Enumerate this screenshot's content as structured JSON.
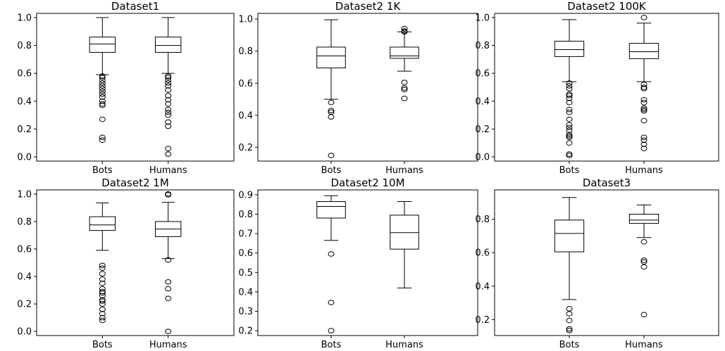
{
  "chart_data": [
    {
      "type": "boxplot",
      "title": "Dataset1",
      "categories": [
        "Bots",
        "Humans"
      ],
      "ylim": [
        -0.03,
        1.03
      ],
      "yticks": [
        0.0,
        0.2,
        0.4,
        0.6,
        0.8,
        1.0
      ],
      "ytick_labels": [
        "0.0",
        "0.2",
        "0.4",
        "0.6",
        "0.8",
        "1.0"
      ],
      "boxes": [
        {
          "name": "Bots",
          "whisker_low": 0.59,
          "q1": 0.75,
          "median": 0.81,
          "q3": 0.86,
          "whisker_high": 1.0,
          "outliers": [
            0.58,
            0.57,
            0.55,
            0.53,
            0.51,
            0.49,
            0.47,
            0.45,
            0.43,
            0.4,
            0.38,
            0.37,
            0.27,
            0.14,
            0.12
          ]
        },
        {
          "name": "Humans",
          "whisker_low": 0.6,
          "q1": 0.75,
          "median": 0.8,
          "q3": 0.86,
          "whisker_high": 1.0,
          "outliers": [
            0.58,
            0.57,
            0.55,
            0.53,
            0.51,
            0.48,
            0.44,
            0.41,
            0.38,
            0.34,
            0.32,
            0.3,
            0.25,
            0.22,
            0.06,
            0.02
          ]
        }
      ]
    },
    {
      "type": "boxplot",
      "title": "Dataset2 1K",
      "categories": [
        "Bots",
        "Humans"
      ],
      "ylim": [
        0.115,
        1.035
      ],
      "yticks": [
        0.2,
        0.4,
        0.6,
        0.8,
        1.0
      ],
      "ytick_labels": [
        "0.2",
        "0.4",
        "0.6",
        "0.8",
        "1.0"
      ],
      "boxes": [
        {
          "name": "Bots",
          "whisker_low": 0.5,
          "q1": 0.695,
          "median": 0.77,
          "q3": 0.825,
          "whisker_high": 0.995,
          "outliers": [
            0.48,
            0.43,
            0.42,
            0.39,
            0.15
          ]
        },
        {
          "name": "Humans",
          "whisker_low": 0.675,
          "q1": 0.755,
          "median": 0.77,
          "q3": 0.825,
          "whisker_high": 0.92,
          "outliers": [
            0.94,
            0.925,
            0.92,
            0.605,
            0.57,
            0.56,
            0.505
          ]
        }
      ]
    },
    {
      "type": "boxplot",
      "title": "Dataset2 100K",
      "categories": [
        "Bots",
        "Humans"
      ],
      "ylim": [
        -0.03,
        1.03
      ],
      "yticks": [
        0.0,
        0.2,
        0.4,
        0.6,
        0.8,
        1.0
      ],
      "ytick_labels": [
        "0.0",
        "0.2",
        "0.4",
        "0.6",
        "0.8",
        "1.0"
      ],
      "boxes": [
        {
          "name": "Bots",
          "whisker_low": 0.54,
          "q1": 0.72,
          "median": 0.77,
          "q3": 0.83,
          "whisker_high": 0.985,
          "outliers": [
            0.53,
            0.51,
            0.49,
            0.45,
            0.44,
            0.42,
            0.39,
            0.34,
            0.32,
            0.27,
            0.23,
            0.21,
            0.19,
            0.16,
            0.15,
            0.14,
            0.1,
            0.02,
            0.01
          ]
        },
        {
          "name": "Humans",
          "whisker_low": 0.54,
          "q1": 0.705,
          "median": 0.755,
          "q3": 0.815,
          "whisker_high": 0.96,
          "outliers": [
            1.0,
            0.52,
            0.5,
            0.49,
            0.41,
            0.39,
            0.35,
            0.34,
            0.33,
            0.26,
            0.14,
            0.12,
            0.09,
            0.06
          ]
        }
      ]
    },
    {
      "type": "boxplot",
      "title": "Dataset2 1M",
      "categories": [
        "Bots",
        "Humans"
      ],
      "ylim": [
        -0.03,
        1.03
      ],
      "yticks": [
        0.0,
        0.2,
        0.4,
        0.6,
        0.8,
        1.0
      ],
      "ytick_labels": [
        "0.0",
        "0.2",
        "0.4",
        "0.6",
        "0.8",
        "1.0"
      ],
      "boxes": [
        {
          "name": "Bots",
          "whisker_low": 0.59,
          "q1": 0.735,
          "median": 0.775,
          "q3": 0.835,
          "whisker_high": 0.935,
          "outliers": [
            0.48,
            0.46,
            0.42,
            0.38,
            0.35,
            0.31,
            0.29,
            0.28,
            0.26,
            0.23,
            0.22,
            0.2,
            0.16,
            0.13,
            0.1,
            0.08
          ]
        },
        {
          "name": "Humans",
          "whisker_low": 0.53,
          "q1": 0.69,
          "median": 0.745,
          "q3": 0.8,
          "whisker_high": 0.94,
          "outliers": [
            1.0,
            0.995,
            0.52,
            0.36,
            0.31,
            0.24,
            0.0
          ]
        }
      ]
    },
    {
      "type": "boxplot",
      "title": "Dataset2 10M",
      "categories": [
        "Bots",
        "Humans"
      ],
      "ylim": [
        0.175,
        0.925
      ],
      "yticks": [
        0.2,
        0.3,
        0.4,
        0.5,
        0.6,
        0.7,
        0.8,
        0.9
      ],
      "ytick_labels": [
        "0.2",
        "0.3",
        "0.4",
        "0.5",
        "0.6",
        "0.7",
        "0.8",
        "0.9"
      ],
      "boxes": [
        {
          "name": "Bots",
          "whisker_low": 0.665,
          "q1": 0.78,
          "median": 0.84,
          "q3": 0.865,
          "whisker_high": 0.895,
          "outliers": [
            0.595,
            0.345,
            0.2
          ]
        },
        {
          "name": "Humans",
          "whisker_low": 0.42,
          "q1": 0.62,
          "median": 0.705,
          "q3": 0.795,
          "whisker_high": 0.865,
          "outliers": []
        }
      ]
    },
    {
      "type": "boxplot",
      "title": "Dataset3",
      "categories": [
        "Bots",
        "Humans"
      ],
      "ylim": [
        0.105,
        0.975
      ],
      "yticks": [
        0.2,
        0.4,
        0.6,
        0.8
      ],
      "ytick_labels": [
        "0.2",
        "0.4",
        "0.6",
        "0.8"
      ],
      "boxes": [
        {
          "name": "Bots",
          "whisker_low": 0.32,
          "q1": 0.605,
          "median": 0.715,
          "q3": 0.795,
          "whisker_high": 0.93,
          "outliers": [
            0.265,
            0.235,
            0.195,
            0.145,
            0.135
          ]
        },
        {
          "name": "Humans",
          "whisker_low": 0.69,
          "q1": 0.775,
          "median": 0.795,
          "q3": 0.83,
          "whisker_high": 0.885,
          "outliers": [
            0.665,
            0.555,
            0.545,
            0.515,
            0.23
          ]
        }
      ]
    }
  ]
}
